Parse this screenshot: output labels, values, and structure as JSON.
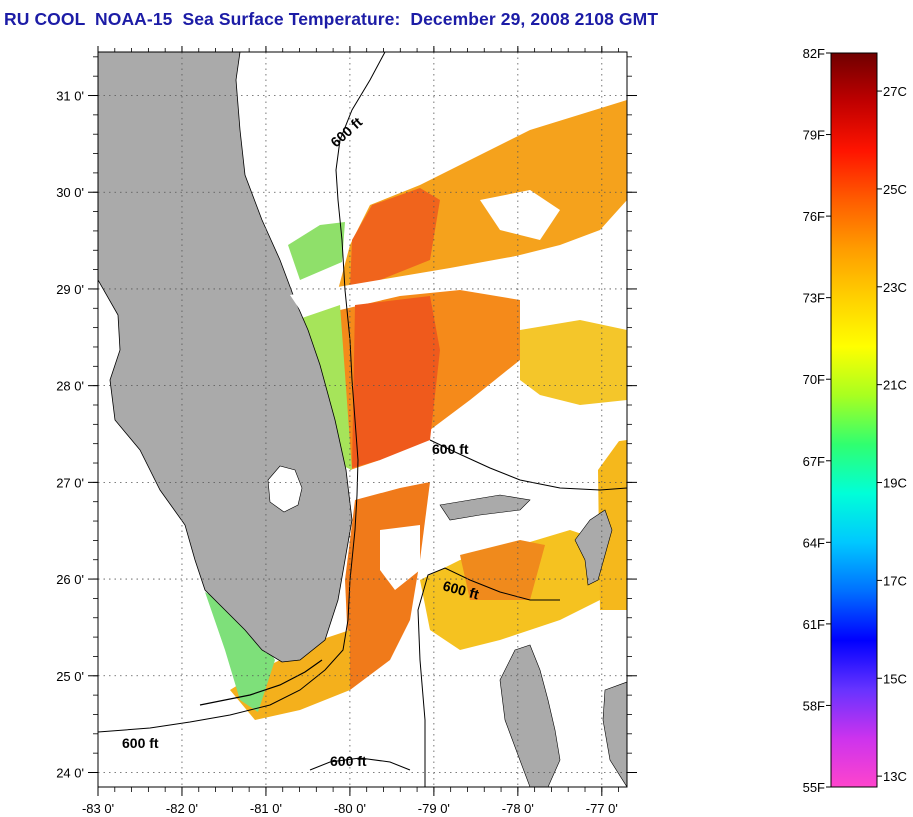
{
  "title": "RU COOL  NOAA-15  Sea Surface Temperature:  December 29, 2008 2108 GMT",
  "axes": {
    "lat_labels": [
      "31 0'",
      "30 0'",
      "29 0'",
      "28 0'",
      "27 0'",
      "26 0'",
      "25 0'",
      "24 0'"
    ],
    "lat_values": [
      31,
      30,
      29,
      28,
      27,
      26,
      25,
      24
    ],
    "lon_labels": [
      "-83 0'",
      "-82 0'",
      "-81 0'",
      "-80 0'",
      "-79 0'",
      "-78 0'",
      "-77 0'"
    ],
    "lon_values": [
      -83,
      -82,
      -81,
      -80,
      -79,
      -78,
      -77
    ],
    "lon_range": [
      -83,
      -76.7
    ],
    "lat_range": [
      23.85,
      31.45
    ],
    "grid": "dotted"
  },
  "contour_labels": [
    "600 ft",
    "600 ft",
    "600 ft",
    "600 ft",
    "600 ft"
  ],
  "colorbar": {
    "fahrenheit_labels": [
      "82F",
      "79F",
      "76F",
      "73F",
      "70F",
      "67F",
      "64F",
      "61F",
      "58F",
      "55F"
    ],
    "celsius_labels": [
      "27C",
      "25C",
      "23C",
      "21C",
      "19C",
      "17C",
      "15C",
      "13C"
    ],
    "range_f": [
      55,
      82
    ],
    "stops": [
      "#ff44cc",
      "#cc33ee",
      "#6633ff",
      "#0000ff",
      "#0070ff",
      "#00c8ff",
      "#00ffd8",
      "#30ff70",
      "#a8ff20",
      "#ffff00",
      "#ffd000",
      "#ff9c00",
      "#ff5c00",
      "#ff1400",
      "#c00000",
      "#700000"
    ]
  },
  "colors": {
    "land": "#aaaaaa",
    "sst_cool": "#7ae06a",
    "sst_mid": "#f5c21a",
    "sst_warm": "#f57a1a",
    "sst_hot": "#f0561c",
    "coast": "#000000"
  }
}
